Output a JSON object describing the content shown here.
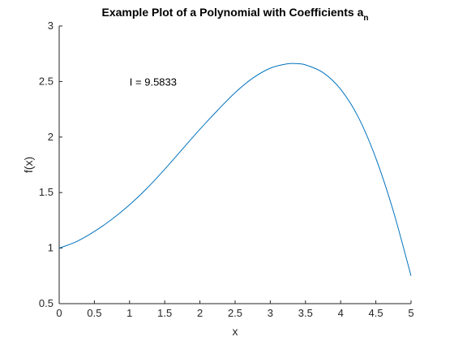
{
  "chart_data": {
    "type": "line",
    "title": "Example Plot of a Polynomial with Coefficients a",
    "title_subscript": "n",
    "xlabel": "x",
    "ylabel": "f(x)",
    "xlim": [
      0,
      5
    ],
    "ylim": [
      0.5,
      3
    ],
    "xticks": [
      0,
      0.5,
      1,
      1.5,
      2,
      2.5,
      3,
      3.5,
      4,
      4.5,
      5
    ],
    "yticks": [
      0.5,
      1,
      1.5,
      2,
      2.5,
      3
    ],
    "xtick_labels": [
      "0",
      "0.5",
      "1",
      "1.5",
      "2",
      "2.5",
      "3",
      "3.5",
      "4",
      "4.5",
      "5"
    ],
    "ytick_labels": [
      "0.5",
      "1",
      "1.5",
      "2",
      "2.5",
      "3"
    ],
    "grid": false,
    "annotation": {
      "text": "I = 9.5833",
      "x": 1.0,
      "y": 2.5
    },
    "series": [
      {
        "color": "#0072BD",
        "x": [
          0,
          0.25,
          0.5,
          0.75,
          1.0,
          1.25,
          1.5,
          1.75,
          2.0,
          2.25,
          2.5,
          2.75,
          3.0,
          3.25,
          3.4,
          3.5,
          3.75,
          4.0,
          4.25,
          4.5,
          4.75,
          5.0
        ],
        "y": [
          1.0,
          1.06,
          1.15,
          1.26,
          1.39,
          1.54,
          1.71,
          1.89,
          2.07,
          2.24,
          2.4,
          2.53,
          2.62,
          2.66,
          2.66,
          2.65,
          2.58,
          2.43,
          2.18,
          1.81,
          1.33,
          0.75
        ]
      }
    ]
  }
}
